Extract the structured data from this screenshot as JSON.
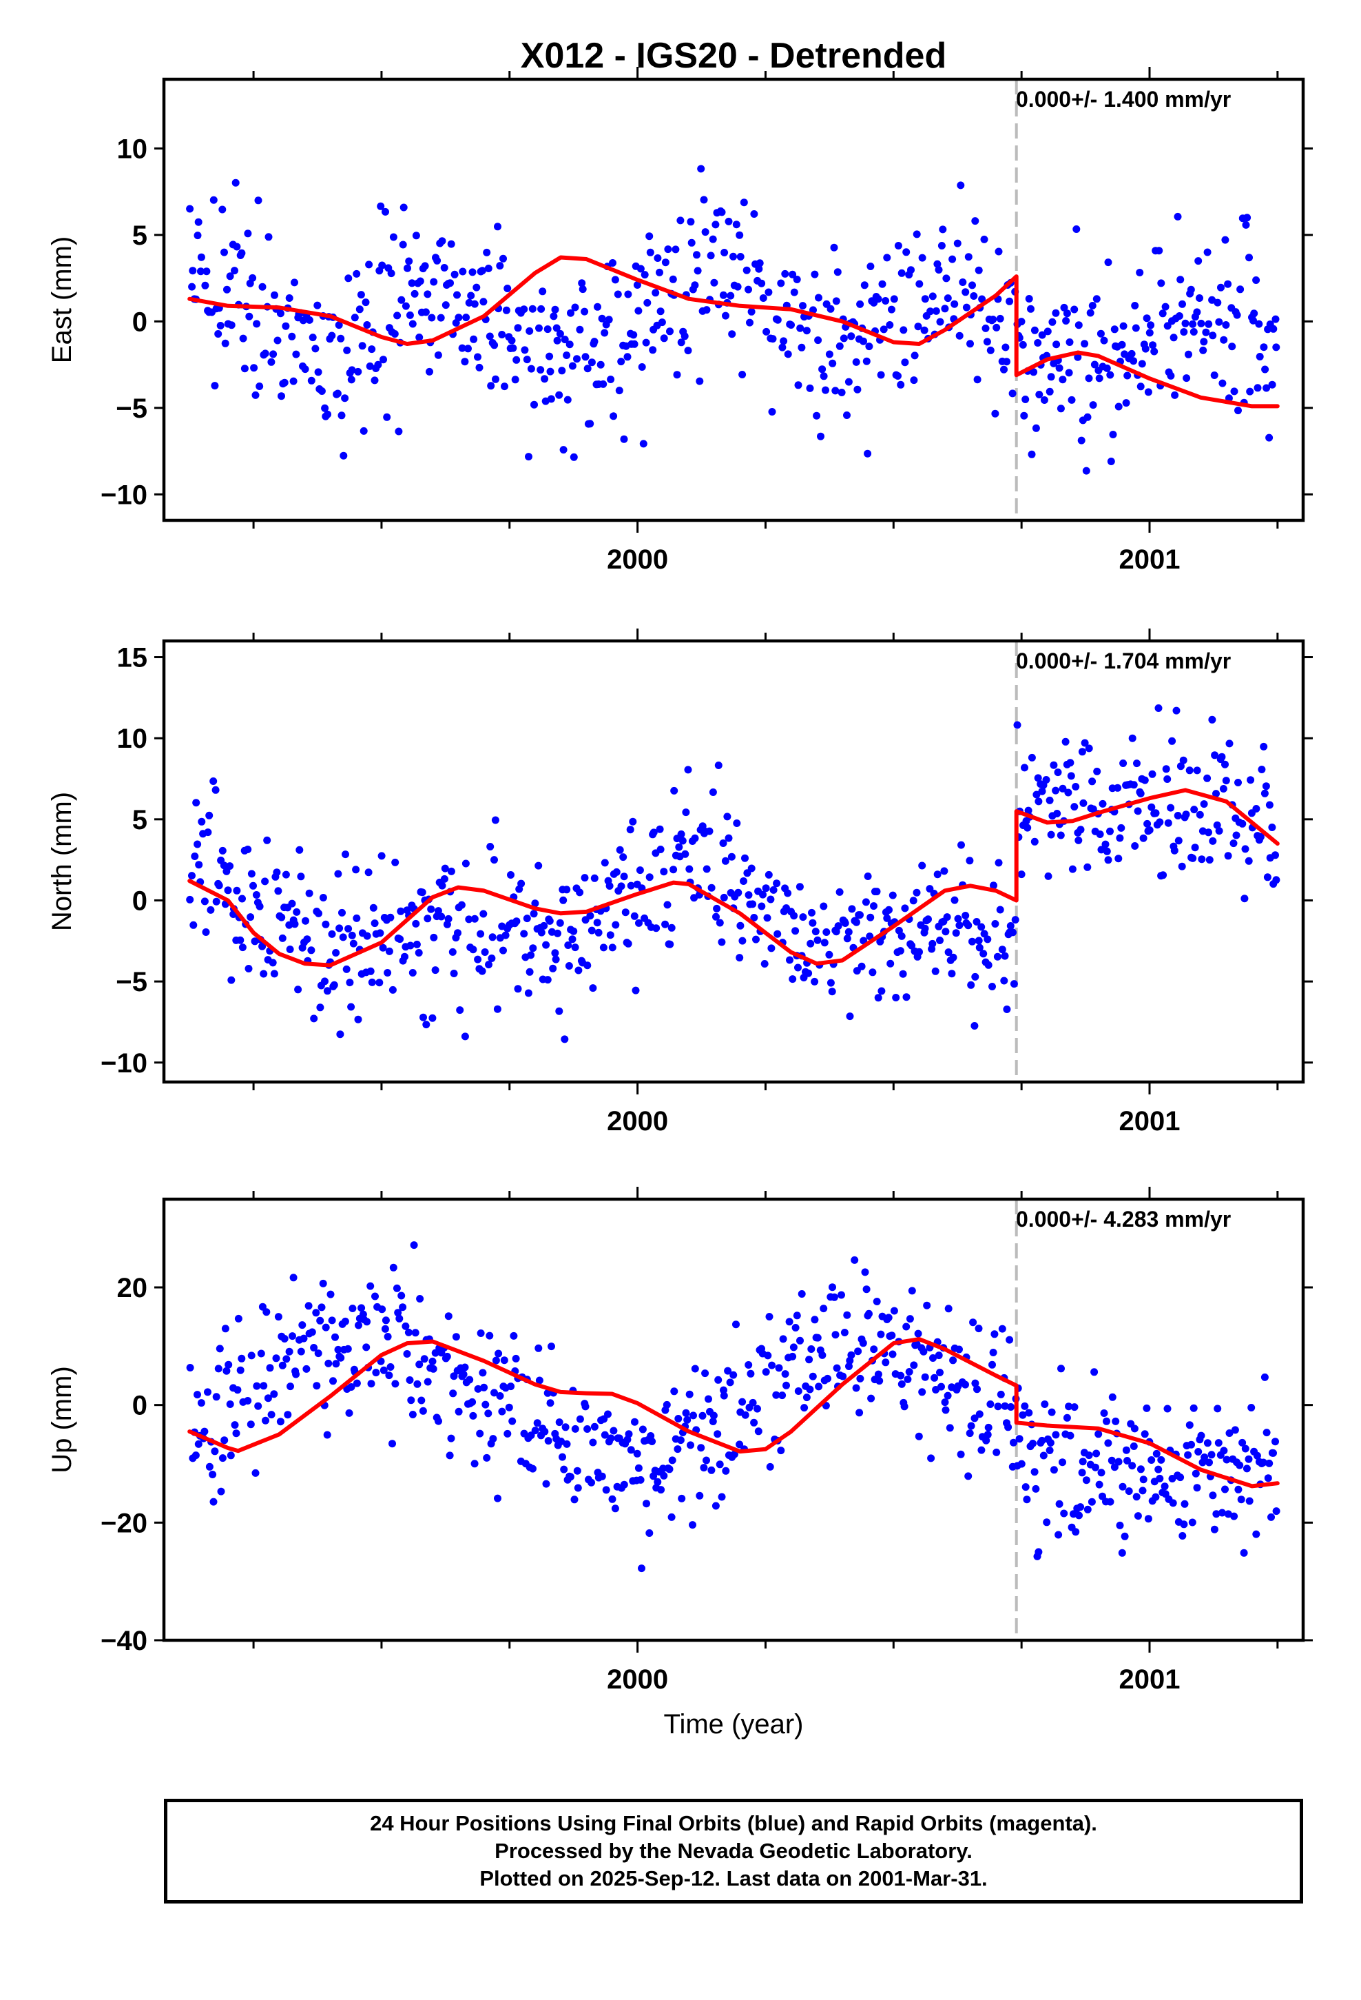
{
  "colors": {
    "final_orbits": "#0000ff",
    "fit": "#ff0000",
    "break_line": "#bbbbbb",
    "frame": "#000000"
  },
  "chart_data": [
    {
      "type": "scatter",
      "title": "X012 - IGS20 - Detrended",
      "ylabel": "East (mm)",
      "xlabel": "",
      "xlim": [
        1999.075,
        2001.3
      ],
      "ylim": [
        -11.5,
        14
      ],
      "yticks": [
        -10,
        -5,
        0,
        5,
        10
      ],
      "xtick_labels": [
        "2000",
        "2001"
      ],
      "rate_label": "0.000+/- 1.400 mm/yr",
      "break_epoch": 2000.74,
      "series": [
        {
          "role": "daily positions (final orbits)",
          "seed": 11,
          "scatter_sd": 2.6,
          "segments": [
            {
              "x0": 1999.125,
              "x1": 2000.74,
              "offset": 0.2,
              "sin": [
                0.95,
                2.25
              ],
              "cos": [
                0.05,
                0.1
              ]
            },
            {
              "x0": 2000.74,
              "x1": 2001.25,
              "offset": -1.6,
              "sin": [
                1.4,
                0.8
              ],
              "cos": [
                1.6,
                -0.6
              ],
              "trend": -3.0
            }
          ]
        },
        {
          "role": "fitted model",
          "points": [
            [
              1999.125,
              1.3
            ],
            [
              1999.2,
              0.9
            ],
            [
              1999.3,
              0.8
            ],
            [
              1999.4,
              0.3
            ],
            [
              1999.5,
              -0.9
            ],
            [
              1999.55,
              -1.3
            ],
            [
              1999.6,
              -1.1
            ],
            [
              1999.7,
              0.3
            ],
            [
              1999.8,
              2.8
            ],
            [
              1999.85,
              3.7
            ],
            [
              1999.9,
              3.6
            ],
            [
              2000.0,
              2.4
            ],
            [
              2000.1,
              1.3
            ],
            [
              2000.2,
              0.9
            ],
            [
              2000.3,
              0.7
            ],
            [
              2000.4,
              0.0
            ],
            [
              2000.5,
              -1.2
            ],
            [
              2000.55,
              -1.3
            ],
            [
              2000.6,
              -0.5
            ],
            [
              2000.7,
              1.5
            ],
            [
              2000.74,
              2.6
            ],
            [
              2000.74,
              -3.1
            ],
            [
              2000.8,
              -2.2
            ],
            [
              2000.86,
              -1.8
            ],
            [
              2000.9,
              -2.0
            ],
            [
              2001.0,
              -3.3
            ],
            [
              2001.1,
              -4.4
            ],
            [
              2001.2,
              -4.9
            ],
            [
              2001.25,
              -4.9
            ]
          ]
        }
      ]
    },
    {
      "type": "scatter",
      "title": "",
      "ylabel": "North (mm)",
      "xlabel": "",
      "xlim": [
        1999.075,
        2001.3
      ],
      "ylim": [
        -11.2,
        16
      ],
      "yticks": [
        -10,
        -5,
        0,
        5,
        10,
        15
      ],
      "xtick_labels": [
        "2000",
        "2001"
      ],
      "rate_label": "0.000+/- 1.704 mm/yr",
      "break_epoch": 2000.74,
      "series": [
        {
          "role": "daily positions (final orbits)",
          "seed": 23,
          "scatter_sd": 2.3,
          "segments": [
            {
              "x0": 1999.125,
              "x1": 2000.74,
              "offset": -1.0,
              "sin": [
                1.0,
                1.5
              ],
              "cos": [
                1.8,
                0.5
              ],
              "trend": 0.0
            },
            {
              "x0": 2000.74,
              "x1": 2001.25,
              "offset": 5.5,
              "sin": [
                -0.6,
                0.5
              ],
              "cos": [
                0.4,
                0.6
              ],
              "trend": 0.0
            }
          ]
        },
        {
          "role": "fitted model",
          "points": [
            [
              1999.125,
              1.2
            ],
            [
              1999.2,
              0.0
            ],
            [
              1999.25,
              -2.0
            ],
            [
              1999.3,
              -3.3
            ],
            [
              1999.35,
              -3.9
            ],
            [
              1999.4,
              -4.0
            ],
            [
              1999.5,
              -2.6
            ],
            [
              1999.6,
              0.2
            ],
            [
              1999.65,
              0.8
            ],
            [
              1999.7,
              0.6
            ],
            [
              1999.8,
              -0.5
            ],
            [
              1999.85,
              -0.8
            ],
            [
              1999.9,
              -0.7
            ],
            [
              2000.0,
              0.4
            ],
            [
              2000.07,
              1.1
            ],
            [
              2000.1,
              1.0
            ],
            [
              2000.2,
              -0.8
            ],
            [
              2000.3,
              -3.2
            ],
            [
              2000.35,
              -3.9
            ],
            [
              2000.4,
              -3.7
            ],
            [
              2000.5,
              -1.6
            ],
            [
              2000.6,
              0.6
            ],
            [
              2000.65,
              0.9
            ],
            [
              2000.7,
              0.6
            ],
            [
              2000.74,
              0.0
            ],
            [
              2000.74,
              5.5
            ],
            [
              2000.8,
              4.8
            ],
            [
              2000.85,
              4.9
            ],
            [
              2000.9,
              5.4
            ],
            [
              2001.0,
              6.3
            ],
            [
              2001.07,
              6.8
            ],
            [
              2001.15,
              6.1
            ],
            [
              2001.25,
              3.5
            ]
          ]
        }
      ]
    },
    {
      "type": "scatter",
      "title": "",
      "ylabel": "Up (mm)",
      "xlabel": "Time (year)",
      "xlim": [
        1999.075,
        2001.3
      ],
      "ylim": [
        -40,
        35
      ],
      "yticks": [
        -40,
        -20,
        0,
        20
      ],
      "xtick_labels": [
        "2000",
        "2001"
      ],
      "rate_label": "0.000+/- 4.283 mm/yr",
      "break_epoch": 2000.74,
      "series": [
        {
          "role": "daily positions (final orbits)",
          "seed": 37,
          "scatter_sd": 6.5,
          "segments": [
            {
              "x0": 1999.125,
              "x1": 2000.74,
              "offset": 1.0,
              "sin": [
                1.5,
                -1.3
              ],
              "cos": [
                -9.5,
                -1.0
              ],
              "trend": 0.0
            },
            {
              "x0": 2000.74,
              "x1": 2001.25,
              "offset": -6.0,
              "sin": [
                1.5,
                1.2
              ],
              "cos": [
                -3.0,
                0.5
              ],
              "trend": -12.0
            }
          ]
        },
        {
          "role": "fitted model",
          "points": [
            [
              1999.125,
              -4.5
            ],
            [
              1999.2,
              -7.3
            ],
            [
              1999.22,
              -7.8
            ],
            [
              1999.3,
              -5.0
            ],
            [
              1999.4,
              1.5
            ],
            [
              1999.5,
              8.5
            ],
            [
              1999.55,
              10.5
            ],
            [
              1999.6,
              10.8
            ],
            [
              1999.7,
              7.5
            ],
            [
              1999.8,
              3.5
            ],
            [
              1999.85,
              2.2
            ],
            [
              1999.9,
              2.0
            ],
            [
              1999.95,
              1.9
            ],
            [
              2000.0,
              0.3
            ],
            [
              2000.1,
              -4.5
            ],
            [
              2000.2,
              -7.9
            ],
            [
              2000.25,
              -7.5
            ],
            [
              2000.3,
              -4.5
            ],
            [
              2000.4,
              3.5
            ],
            [
              2000.5,
              10.5
            ],
            [
              2000.55,
              11.2
            ],
            [
              2000.6,
              9.5
            ],
            [
              2000.7,
              5.0
            ],
            [
              2000.74,
              3.3
            ],
            [
              2000.74,
              -3.0
            ],
            [
              2000.8,
              -3.5
            ],
            [
              2000.9,
              -4.0
            ],
            [
              2001.0,
              -6.5
            ],
            [
              2001.1,
              -11.0
            ],
            [
              2001.2,
              -13.8
            ],
            [
              2001.25,
              -13.3
            ]
          ]
        }
      ]
    }
  ],
  "footer": {
    "line1": "24 Hour Positions Using Final Orbits (blue) and Rapid Orbits (magenta).",
    "line2": "Processed by the Nevada Geodetic Laboratory.",
    "line3": "Plotted on 2025-Sep-12. Last data on 2001-Mar-31."
  }
}
